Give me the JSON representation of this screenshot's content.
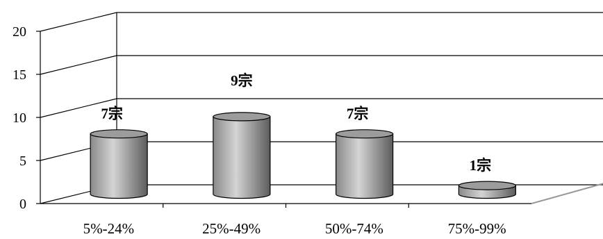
{
  "chart_data": {
    "type": "bar",
    "categories": [
      "5%-24%",
      "25%-49%",
      "50%-74%",
      "75%-99%"
    ],
    "values": [
      7,
      9,
      7,
      1
    ],
    "data_labels": [
      "7宗",
      "9宗",
      "7宗",
      "1宗"
    ],
    "title": "",
    "xlabel": "",
    "ylabel": "",
    "ylim": [
      0,
      20
    ],
    "yticks": [
      0,
      5,
      10,
      15,
      20
    ],
    "grid": true,
    "legend": "none",
    "colors": {
      "bar": "#a0a0a0",
      "grid": "#000000",
      "floor": "#999999"
    }
  }
}
